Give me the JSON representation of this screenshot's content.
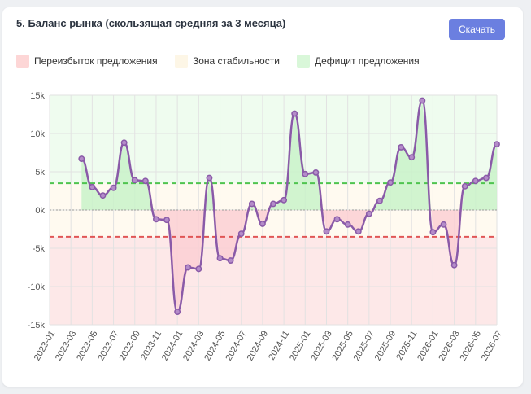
{
  "header": {
    "title": "5. Баланс рынка (скользящая средняя за 3 месяца)",
    "download_label": "Скачать"
  },
  "legend": [
    {
      "label": "Переизбыток предложения",
      "color": "#fdd6d6"
    },
    {
      "label": "Зона стабильности",
      "color": "#fdf6e6"
    },
    {
      "label": "Дефицит предложения",
      "color": "#d9f7d9"
    }
  ],
  "colors": {
    "line": "#8a5aa8",
    "oversupply_zone": "#fde8e8",
    "stability_zone": "#fffaf0",
    "deficit_zone": "#effcef",
    "oversupply_fill": "#fbcfd3",
    "deficit_fill": "#c9f2c9",
    "upper_threshold": "#4fc44f",
    "lower_threshold": "#e05555"
  },
  "chart_data": {
    "type": "line",
    "x": [
      "2023-01",
      "2023-02",
      "2023-03",
      "2023-04",
      "2023-05",
      "2023-06",
      "2023-07",
      "2023-08",
      "2023-09",
      "2023-10",
      "2023-11",
      "2023-12",
      "2024-01",
      "2024-02",
      "2024-03",
      "2024-04",
      "2024-05",
      "2024-06",
      "2024-07",
      "2024-08",
      "2024-09",
      "2024-10",
      "2024-11",
      "2024-12",
      "2025-01",
      "2025-02",
      "2025-03",
      "2025-04",
      "2025-05",
      "2025-06",
      "2025-07",
      "2025-08",
      "2025-09",
      "2025-10",
      "2025-11",
      "2025-12",
      "2026-01",
      "2026-02",
      "2026-03",
      "2026-04",
      "2026-05",
      "2026-06",
      "2026-07"
    ],
    "x_tick_labels": [
      "2023-01",
      "2023-03",
      "2023-05",
      "2023-07",
      "2023-09",
      "2023-11",
      "2024-01",
      "2024-03",
      "2024-05",
      "2024-07",
      "2024-09",
      "2024-11",
      "2025-01",
      "2025-03",
      "2025-05",
      "2025-07",
      "2025-09",
      "2025-11",
      "2026-01",
      "2026-03",
      "2026-05",
      "2026-07"
    ],
    "series": [
      {
        "values": [
          null,
          null,
          null,
          6700,
          3000,
          1900,
          2900,
          8800,
          3900,
          3800,
          -1200,
          -1300,
          -13300,
          -7500,
          -7700,
          4200,
          -6300,
          -6600,
          -3100,
          800,
          -1800,
          800,
          1300,
          12600,
          4700,
          4900,
          -2800,
          -1200,
          -1900,
          -2800,
          -500,
          1200,
          3600,
          8200,
          6900,
          14300,
          -2900,
          -1900,
          -7200,
          3100,
          3800,
          4200,
          8600
        ]
      }
    ],
    "ylim": [
      -15000,
      15000
    ],
    "y_ticks": [
      -15000,
      -10000,
      -5000,
      0,
      5000,
      10000,
      15000
    ],
    "y_tick_labels": [
      "-15k",
      "-10k",
      "-5k",
      "0k",
      "5k",
      "10k",
      "15k"
    ],
    "thresholds": {
      "upper": 3500,
      "lower": -3500
    },
    "grid": true,
    "legend_position": "top-left"
  }
}
